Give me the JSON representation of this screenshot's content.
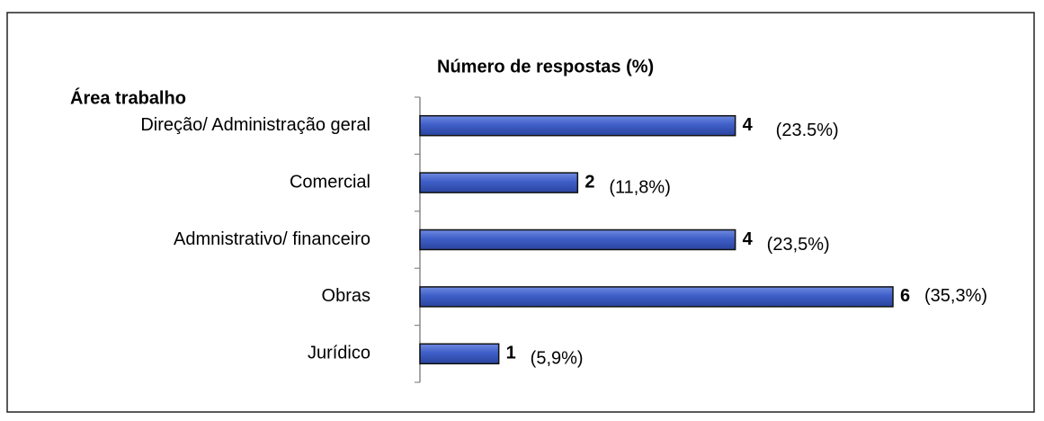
{
  "chart_data": {
    "type": "barh",
    "title": "Número de respostas (%)",
    "category_header": "Área trabalho",
    "categories": [
      "Direção/ Administração geral",
      "Comercial",
      "Admnistrativo/ financeiro",
      "Obras",
      "Jurídico"
    ],
    "values": [
      4,
      2,
      4,
      6,
      1
    ],
    "percentages": [
      23.5,
      11.8,
      23.5,
      35.3,
      5.9
    ],
    "percentage_labels": [
      "(23.5%)",
      "(11,8%)",
      "(23,5%)",
      "(35,3%)",
      "(5,9%)"
    ],
    "color": "#3f5fc8",
    "xlim": [
      0,
      6
    ]
  }
}
